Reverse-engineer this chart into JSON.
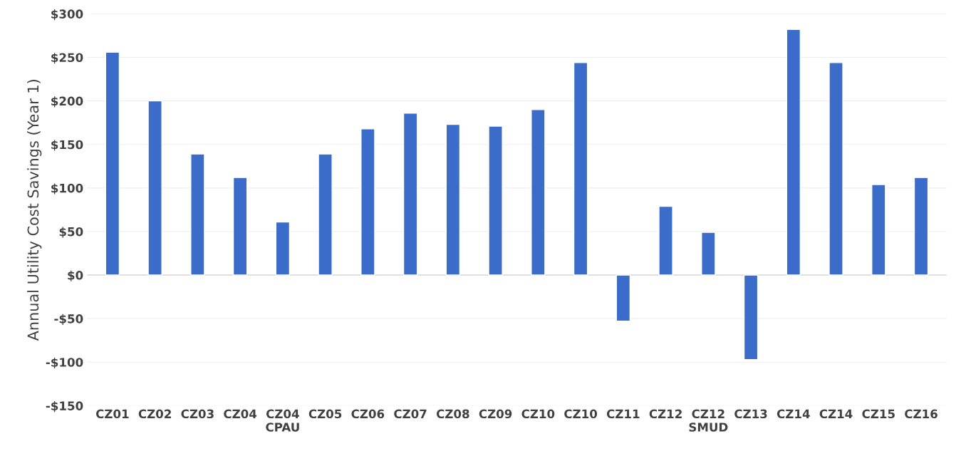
{
  "chart_data": {
    "type": "bar",
    "ylabel": "Annual Utility Cost Savings (Year 1)",
    "categories": [
      "CZ01",
      "CZ02",
      "CZ03",
      "CZ04",
      "CZ04\nCPAU",
      "CZ05",
      "CZ06",
      "CZ07",
      "CZ08",
      "CZ09",
      "CZ10",
      "CZ10",
      "CZ11",
      "CZ12",
      "CZ12\nSMUD",
      "CZ13",
      "CZ14",
      "CZ14",
      "CZ15",
      "CZ16"
    ],
    "values": [
      256,
      200,
      139,
      112,
      61,
      139,
      168,
      186,
      173,
      171,
      190,
      244,
      -53,
      79,
      49,
      -97,
      282,
      244,
      104,
      112
    ],
    "color": "#3b6cc9",
    "ylim": [
      -150,
      300
    ],
    "yticks": [
      {
        "value": -150,
        "label": "-$150"
      },
      {
        "value": -100,
        "label": "-$100"
      },
      {
        "value": -50,
        "label": "-$50"
      },
      {
        "value": 0,
        "label": "$0"
      },
      {
        "value": 50,
        "label": "$50"
      },
      {
        "value": 100,
        "label": "$100"
      },
      {
        "value": 150,
        "label": "$150"
      },
      {
        "value": 200,
        "label": "$200"
      },
      {
        "value": 250,
        "label": "$250"
      },
      {
        "value": 300,
        "label": "$300"
      }
    ],
    "grid": "y",
    "legend": false
  }
}
